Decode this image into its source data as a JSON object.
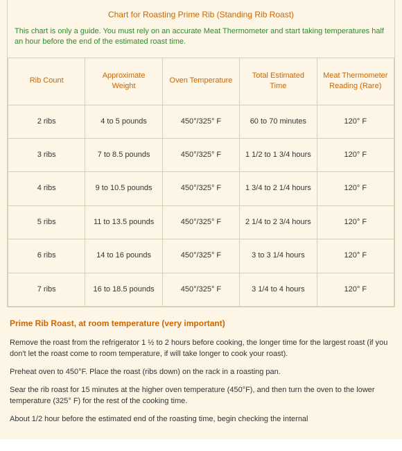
{
  "colors": {
    "page_bg": "#fdf6e6",
    "border": "#d6d0b8",
    "heading": "#cc6600",
    "note": "#2e8b2e",
    "body_text": "#333333"
  },
  "title": "Chart for Roasting Prime Rib (Standing Rib Roast)",
  "note": "This chart is only a guide. You must rely on an accurate Meat Thermometer and start taking temperatures half an hour before the end of the estimated roast time.",
  "table": {
    "columns": [
      "Rib Count",
      "Approximate Weight",
      "Oven Temperature",
      "Total Estimated Time",
      "Meat Thermometer Reading (Rare)"
    ],
    "rows": [
      [
        "2 ribs",
        "4  to 5 pounds",
        "450°/325° F",
        "60 to 70 minutes",
        "120° F"
      ],
      [
        "3 ribs",
        "7 to 8.5 pounds",
        "450°/325° F",
        "1 1/2 to 1 3/4 hours",
        "120° F"
      ],
      [
        "4 ribs",
        "9 to 10.5 pounds",
        "450°/325° F",
        "1 3/4 to 2 1/4 hours",
        "120° F"
      ],
      [
        "5 ribs",
        "11 to 13.5 pounds",
        "450°/325° F",
        "2 1/4 to 2 3/4 hours",
        "120° F"
      ],
      [
        "6 ribs",
        "14 to 16 pounds",
        "450°/325° F",
        "3 to 3 1/4 hours",
        "120° F"
      ],
      [
        "7 ribs",
        "16 to 18.5 pounds",
        "450°/325° F",
        "3 1/4 to 4 hours",
        "120° F"
      ]
    ]
  },
  "section_heading": "Prime Rib Roast, at room temperature (very important)",
  "paragraphs": [
    " Remove the roast from the refrigerator 1 ½ to 2 hours before cooking, the longer time for the largest roast (if you don't let the roast come to room temperature, if will take longer to cook your roast).",
    "Preheat oven to 450°F. Place the roast (ribs down) on the rack in a roasting pan.",
    "Sear the rib roast for 15 minutes at the higher oven temperature (450°F), and then turn the oven to the lower temperature (325° F) for the rest of the cooking time.",
    "About 1/2 hour before the estimated end of the roasting time, begin checking the internal"
  ]
}
